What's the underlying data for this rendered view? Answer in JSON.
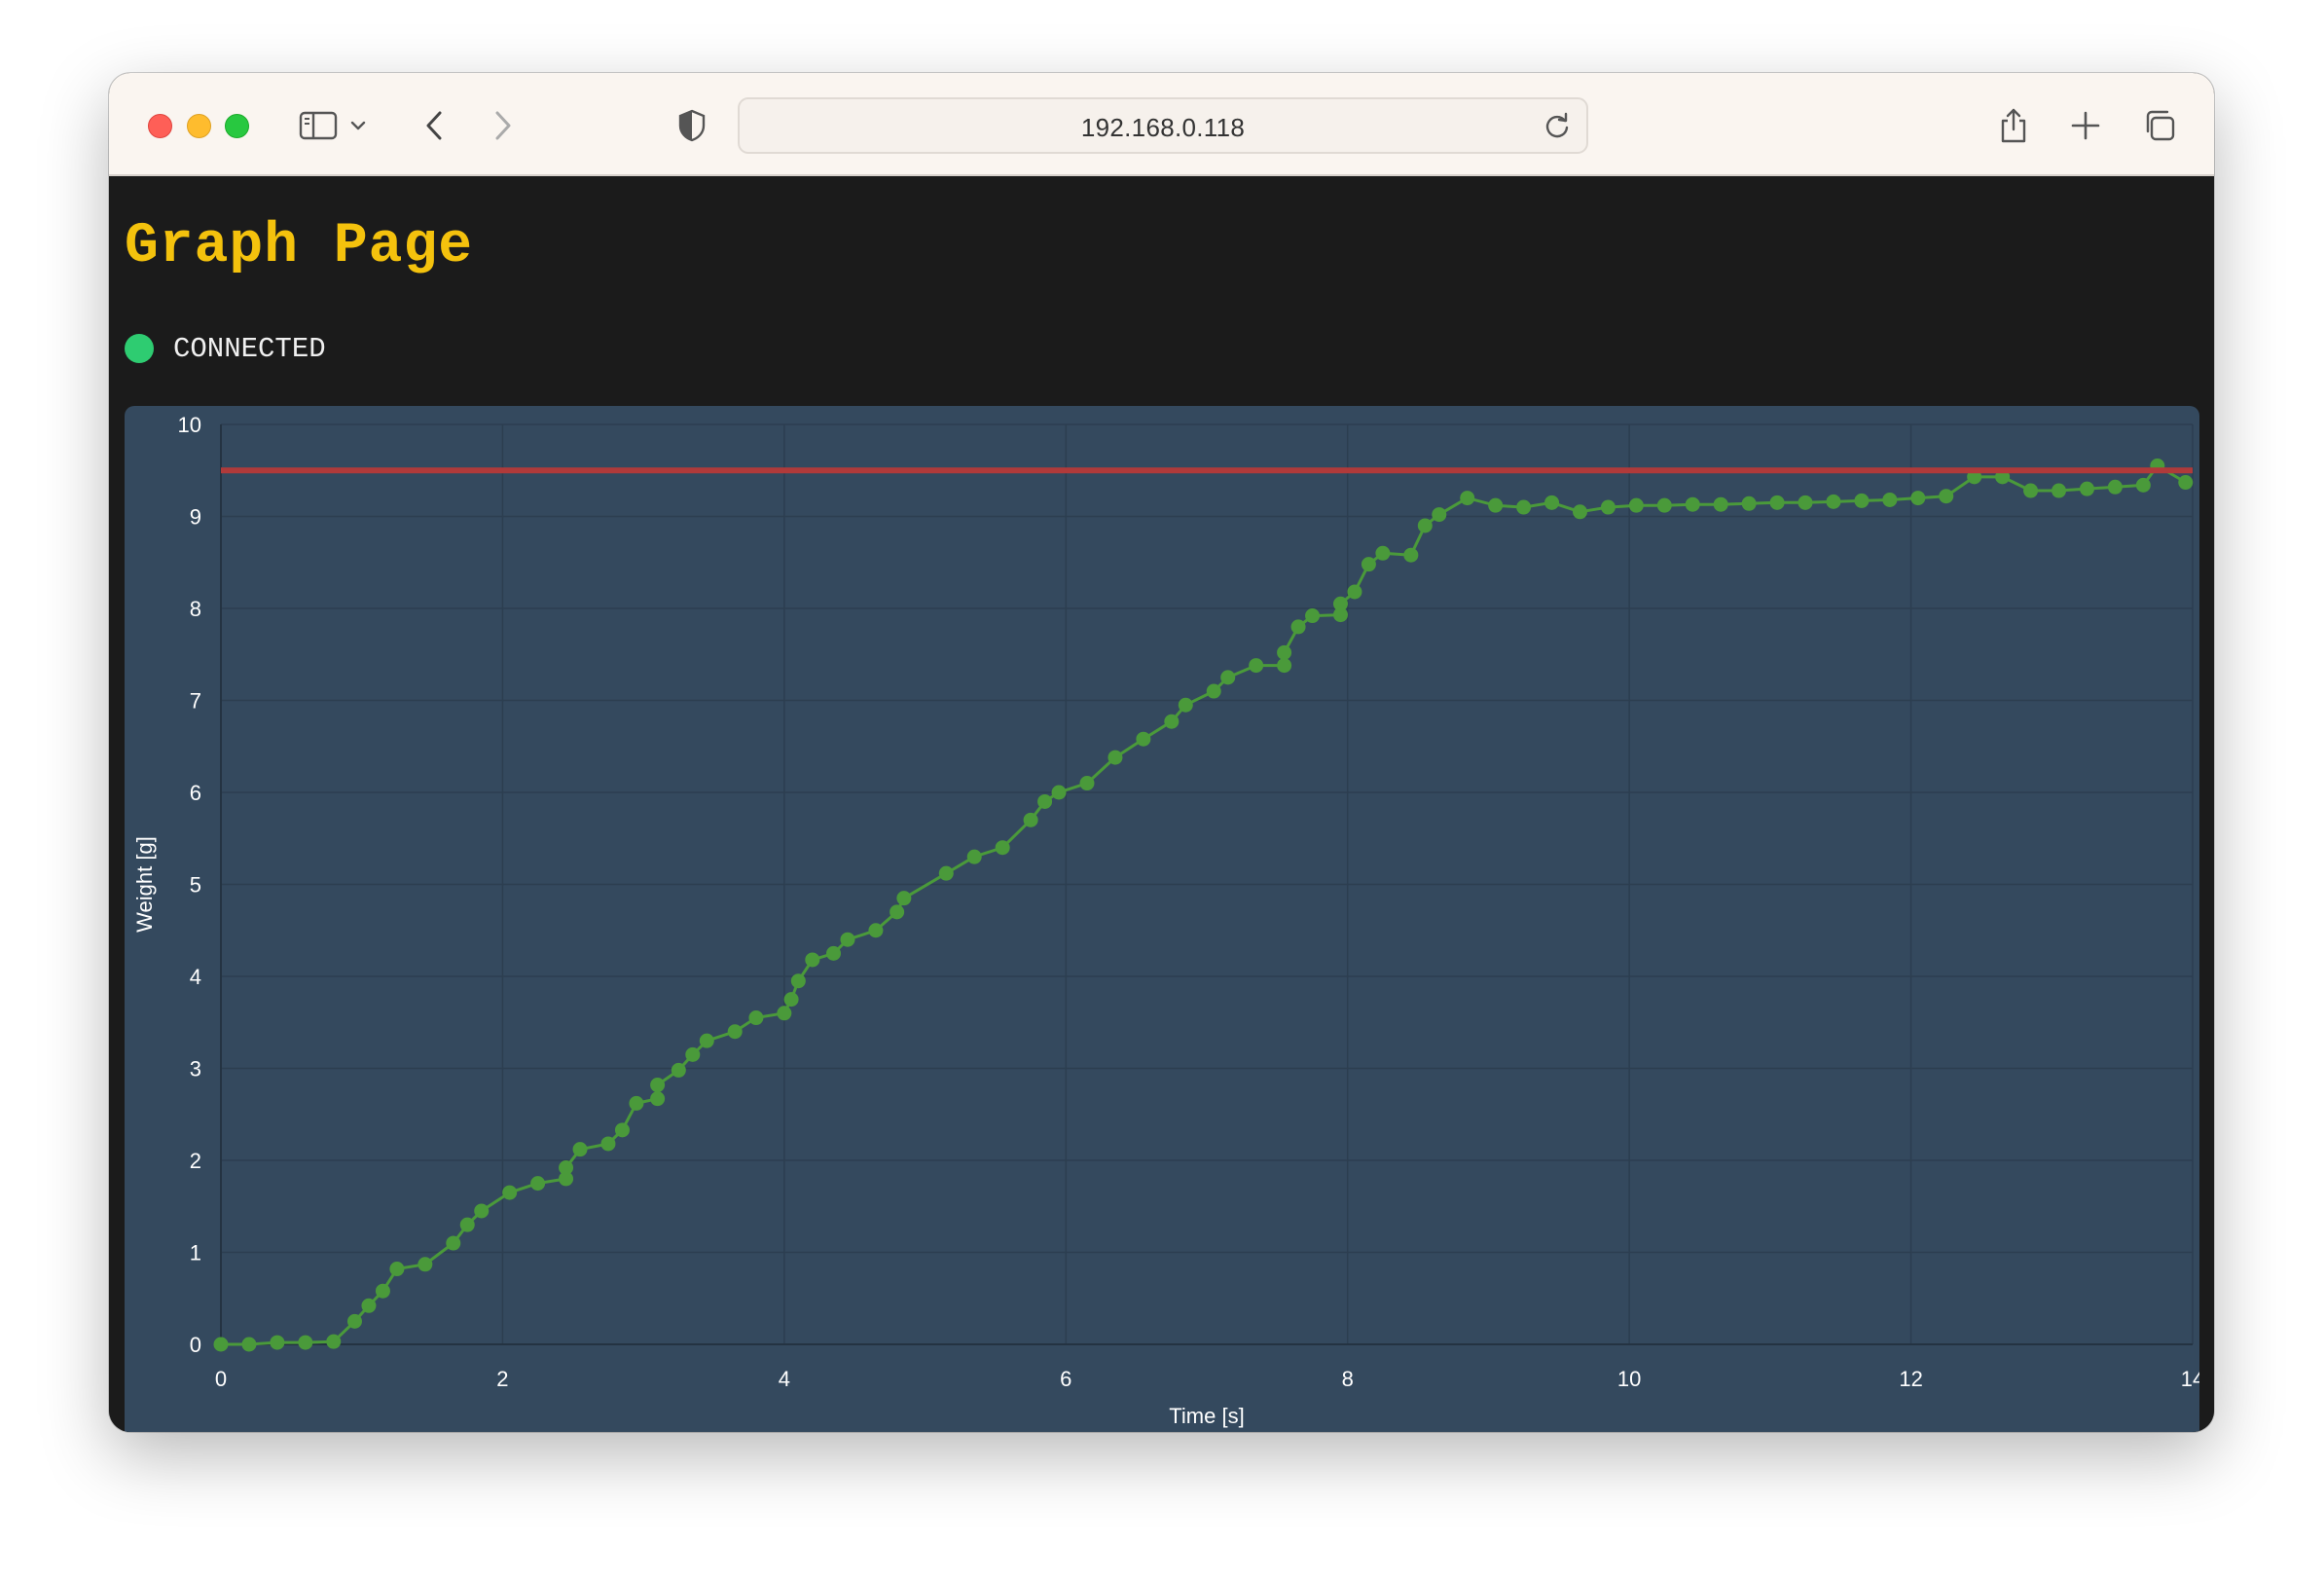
{
  "browser": {
    "url": "192.168.0.118"
  },
  "page": {
    "title": "Graph Page",
    "status": "CONNECTED",
    "status_color": "#2ecc71",
    "title_color": "#f4c20d"
  },
  "colors": {
    "panel_bg": "#34495e",
    "series_line": "#4a9a3a",
    "threshold_line": "#b03a3a"
  },
  "chart_data": {
    "type": "line",
    "title": "",
    "xlabel": "Time [s]",
    "ylabel": "Weight [g]",
    "xlim": [
      0,
      14
    ],
    "ylim": [
      0,
      10
    ],
    "xticks": [
      0,
      2,
      4,
      6,
      8,
      10,
      12,
      14
    ],
    "yticks": [
      0,
      1,
      2,
      3,
      4,
      5,
      6,
      7,
      8,
      9,
      10
    ],
    "grid": true,
    "series": [
      {
        "color": "#4a9a3a",
        "markers": true,
        "x": [
          0.0,
          0.2,
          0.4,
          0.6,
          0.8,
          0.95,
          1.05,
          1.15,
          1.25,
          1.45,
          1.65,
          1.75,
          1.85,
          2.05,
          2.25,
          2.45,
          2.45,
          2.55,
          2.75,
          2.85,
          2.95,
          3.1,
          3.1,
          3.25,
          3.35,
          3.45,
          3.65,
          3.8,
          4.0,
          4.05,
          4.1,
          4.2,
          4.35,
          4.45,
          4.65,
          4.8,
          4.85,
          5.15,
          5.35,
          5.55,
          5.75,
          5.85,
          5.95,
          6.15,
          6.35,
          6.55,
          6.75,
          6.85,
          7.05,
          7.15,
          7.35,
          7.55,
          7.55,
          7.65,
          7.75,
          7.95,
          7.95,
          8.05,
          8.15,
          8.25,
          8.45,
          8.55,
          8.65,
          8.85,
          9.05,
          9.25,
          9.45,
          9.65,
          9.85,
          10.05,
          10.25,
          10.45,
          10.65,
          10.85,
          11.05,
          11.25,
          11.45,
          11.65,
          11.85,
          12.05,
          12.25,
          12.45,
          12.65,
          12.85,
          13.05,
          13.25,
          13.45,
          13.65,
          13.75,
          13.95
        ],
        "y": [
          0.0,
          0.0,
          0.02,
          0.02,
          0.03,
          0.25,
          0.42,
          0.58,
          0.82,
          0.87,
          1.1,
          1.3,
          1.45,
          1.65,
          1.75,
          1.8,
          1.92,
          2.12,
          2.18,
          2.33,
          2.62,
          2.67,
          2.82,
          2.98,
          3.15,
          3.3,
          3.4,
          3.55,
          3.6,
          3.75,
          3.95,
          4.18,
          4.25,
          4.4,
          4.5,
          4.7,
          4.85,
          5.12,
          5.3,
          5.4,
          5.7,
          5.9,
          6.0,
          6.1,
          6.38,
          6.58,
          6.77,
          6.95,
          7.1,
          7.25,
          7.38,
          7.38,
          7.52,
          7.8,
          7.92,
          7.93,
          8.05,
          8.18,
          8.48,
          8.6,
          8.58,
          8.9,
          9.02,
          9.2,
          9.12,
          9.1,
          9.15,
          9.05,
          9.1,
          9.12,
          9.12,
          9.13,
          9.13,
          9.14,
          9.15,
          9.15,
          9.16,
          9.17,
          9.18,
          9.2,
          9.22,
          9.43,
          9.43,
          9.28,
          9.28,
          9.3,
          9.32,
          9.34,
          9.55,
          9.37
        ]
      },
      {
        "color": "#b03a3a",
        "markers": false,
        "x": [
          0,
          14
        ],
        "y": [
          9.5,
          9.5
        ]
      }
    ]
  }
}
